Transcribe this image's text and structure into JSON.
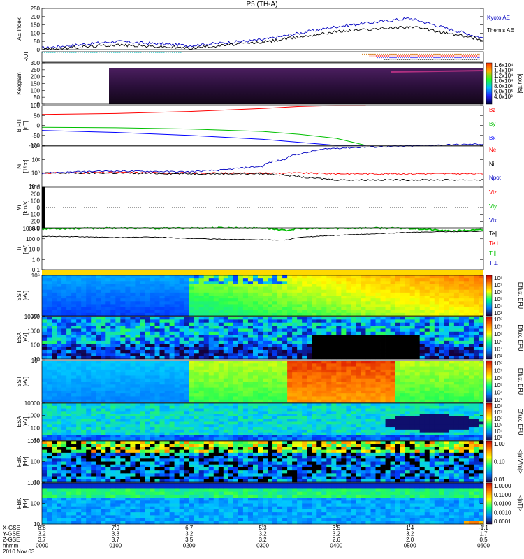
{
  "title": "P5 (TH-A)",
  "chart_data": [
    {
      "type": "line",
      "ylabel": "AE Index",
      "yticks": [
        "250",
        "200",
        "150",
        "100",
        "50",
        "0"
      ],
      "ylim": [
        0,
        250
      ],
      "x": [
        0,
        1,
        2,
        3,
        4,
        5,
        6
      ],
      "series": [
        {
          "name": "Kyoto AE",
          "color": "#0000c0",
          "values": [
            10,
            50,
            25,
            60,
            140,
            190,
            70
          ]
        },
        {
          "name": "Themis AE",
          "color": "#000000",
          "values": [
            0,
            30,
            10,
            45,
            110,
            140,
            60
          ]
        }
      ]
    },
    {
      "type": "line",
      "ylabel": "ROI",
      "segments": [
        {
          "color": "#00c0c0",
          "x_from": 0.0,
          "x_to": 1.9
        },
        {
          "color": "#d07000",
          "x_from": 4.35,
          "x_to": 5.95
        },
        {
          "color": "#ff0000",
          "x_from": 4.45,
          "x_to": 5.95
        },
        {
          "color": "#3030ff",
          "x_from": 4.55,
          "x_to": 5.95
        },
        {
          "color": "#000000",
          "x_from": 4.65,
          "x_to": 5.95
        }
      ]
    },
    {
      "type": "heatmap",
      "ylabel": "Keogram",
      "yticks": [
        "300",
        "250",
        "200",
        "150",
        "100",
        "50",
        "0"
      ],
      "colorbar_unit": "[counts]",
      "colorbar_ticks": [
        "1.6x10⁴",
        "1.4x10⁴",
        "1.2x10⁴",
        "1.0x10⁴",
        "8.0x10³",
        "6.0x10³",
        "4.0x10³"
      ]
    },
    {
      "type": "line",
      "ylabel": "B FIT GSE",
      "yunit": "[nT]",
      "yticks": [
        "100",
        "50",
        "0",
        "-50",
        "-100"
      ],
      "ylim": [
        -100,
        100
      ],
      "x": [
        0,
        1,
        2,
        3,
        3.5,
        4,
        4.4
      ],
      "series": [
        {
          "name": "Bz",
          "color": "#ff0000",
          "values": [
            55,
            60,
            70,
            85,
            95,
            100,
            100
          ]
        },
        {
          "name": "By",
          "color": "#00c000",
          "values": [
            -10,
            -12,
            -18,
            -30,
            -45,
            -65,
            -100
          ]
        },
        {
          "name": "Bx",
          "color": "#0000ff",
          "values": [
            -25,
            -35,
            -50,
            -70,
            -85,
            -100,
            -100
          ]
        }
      ]
    },
    {
      "type": "line",
      "ylabel": "Ni",
      "yunit": "[1/cc]",
      "yticks": [
        "10⁴",
        "10²",
        "10⁰",
        "10⁻²"
      ],
      "yscale": "log",
      "x": [
        0,
        1,
        2,
        2.5,
        3,
        3.3,
        3.6,
        4,
        5,
        6
      ],
      "series": [
        {
          "name": "Ne",
          "color": "#ff0000",
          "values": [
            1,
            1.2,
            1,
            1,
            1,
            1,
            1,
            0.8,
            0.8,
            0.8
          ]
        },
        {
          "name": "Ni",
          "color": "#000000",
          "values": [
            1,
            1,
            0.8,
            0.8,
            0.8,
            0.5,
            0.2,
            0.1,
            0.1,
            0.1
          ]
        },
        {
          "name": "Npot",
          "color": "#0000c0",
          "values": [
            1,
            2,
            1.5,
            3,
            10,
            100,
            1000,
            5000,
            10000,
            20000
          ]
        }
      ]
    },
    {
      "type": "line",
      "ylabel": "Vi",
      "yunit": "[km/s]",
      "yticks": [
        "300",
        "200",
        "100",
        "0",
        "-100",
        "-200",
        "-300"
      ],
      "ylim": [
        -300,
        300
      ],
      "legend": [
        "Viz",
        "Viy",
        "Vix"
      ],
      "legend_colors": [
        "#ff0000",
        "#00c000",
        "#0000c0"
      ]
    },
    {
      "type": "line",
      "ylabel": "Ti",
      "yunit": "[eV]",
      "yticks": [
        "1000.0",
        "100.0",
        "10.0",
        "1.0",
        "0.1"
      ],
      "yscale": "log",
      "x": [
        0,
        0.5,
        1,
        1.5,
        2,
        2.5,
        3,
        3.3,
        3.5,
        4,
        4.5,
        5,
        5.5,
        6
      ],
      "series": [
        {
          "name": "Te∥",
          "color": "#00c000",
          "values": [
            1200,
            1300,
            1400,
            1300,
            1400,
            1500,
            1400,
            800,
            1200,
            1300,
            1400,
            1300,
            700,
            900
          ]
        },
        {
          "name": "Te⊥",
          "color": "#000000",
          "values": [
            200,
            180,
            150,
            170,
            120,
            100,
            90,
            80,
            150,
            250,
            350,
            500,
            600,
            650
          ]
        }
      ],
      "legend": [
        "Te∥",
        "Te⊥",
        "Ti∥",
        "Ti⊥"
      ],
      "legend_colors": [
        "#000000",
        "#ff0000",
        "#00c000",
        "#0000c0"
      ]
    },
    {
      "type": "heatmap",
      "ylabel": "SST",
      "yunit": "[eV]",
      "yticks": [
        "10⁶",
        "10⁴"
      ],
      "colorbar_label": "Eflux, EFU",
      "colorbar_ticks": [
        "10⁸",
        "10⁷",
        "10⁶",
        "10⁵",
        "10⁴",
        "10³"
      ]
    },
    {
      "type": "heatmap",
      "ylabel": "ESA",
      "yunit": "[eV]",
      "yticks": [
        "10000",
        "1000",
        "100",
        "10"
      ],
      "colorbar_label": "Eflux, EFU",
      "colorbar_ticks": [
        "10⁸",
        "10⁷",
        "10⁶",
        "10⁵",
        "10⁴",
        "10³"
      ]
    },
    {
      "type": "heatmap",
      "ylabel": "SST",
      "yunit": "[eV]",
      "yticks": [
        "10⁵"
      ],
      "colorbar_label": "Eflux, EFU",
      "colorbar_ticks": [
        "10⁸",
        "10⁷",
        "10⁶",
        "10⁵",
        "10⁴",
        "10³"
      ]
    },
    {
      "type": "heatmap",
      "ylabel": "ESA",
      "yunit": "[eV]",
      "yticks": [
        "10000",
        "1000",
        "100",
        "10"
      ],
      "colorbar_label": "Eflux, EFU",
      "colorbar_ticks": [
        "10⁸",
        "10⁷",
        "10⁶",
        "10⁵",
        "10⁴",
        "10³"
      ]
    },
    {
      "type": "heatmap",
      "ylabel": "FBK",
      "yunit": "[Hz]",
      "yticks": [
        "1000",
        "100",
        "10"
      ],
      "colorbar_label": "<|mV/m|>",
      "colorbar_ticks": [
        "1.00",
        "0.10",
        "0.01"
      ]
    },
    {
      "type": "heatmap",
      "ylabel": "FBK",
      "yunit": "[Hz]",
      "yticks": [
        "1000",
        "100",
        "10"
      ],
      "colorbar_label": "<|nT|>",
      "colorbar_ticks": [
        "1.0000",
        "0.1000",
        "0.0100",
        "0.0010",
        "0.0001"
      ]
    }
  ],
  "xaxis": {
    "row_labels": [
      "X-GSE",
      "Y-GSE",
      "Z-GSE",
      "hhmm",
      "2010 Nov 03"
    ],
    "columns": [
      {
        "x": "8.8",
        "y": "3.2",
        "z": "3.7",
        "t": "0000"
      },
      {
        "x": "7.9",
        "y": "3.3",
        "z": "3.7",
        "t": "0100"
      },
      {
        "x": "6.7",
        "y": "3.2",
        "z": "3.5",
        "t": "0200"
      },
      {
        "x": "5.3",
        "y": "3.2",
        "z": "3.2",
        "t": "0300"
      },
      {
        "x": "3.5",
        "y": "3.2",
        "z": "2.6",
        "t": "0400"
      },
      {
        "x": "1.4",
        "y": "3.2",
        "z": "2.0",
        "t": "0500"
      },
      {
        "x": "-1.1",
        "y": "1.7",
        "z": "0.5",
        "t": "0600"
      }
    ]
  }
}
